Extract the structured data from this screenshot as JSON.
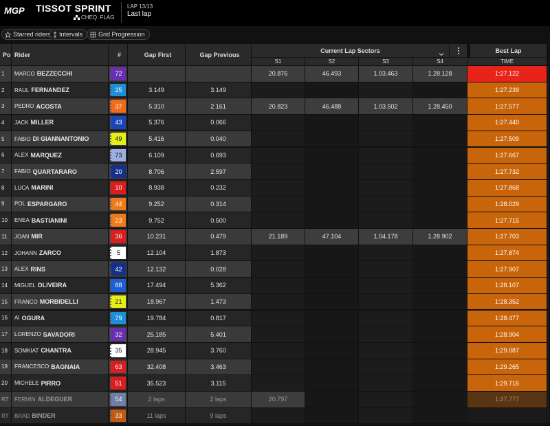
{
  "header": {
    "logo": "MGP",
    "title": "TISSOT SPRINT",
    "status": "CHEQ. FLAG",
    "lap": "LAP 13/13",
    "lap_note": "Last lap"
  },
  "toolbar": {
    "buttons": [
      "Starred riders",
      "Intervals",
      "Grid Progression"
    ]
  },
  "table": {
    "columns": {
      "pos": "Pos",
      "rider": "Rider",
      "number": "#",
      "gap_first": "Gap First",
      "gap_previous": "Gap Previous",
      "sectors_group": "Current Lap Sectors",
      "sectors": [
        "S1",
        "S2",
        "S3",
        "S4"
      ],
      "best_group": "Best Lap",
      "best": "TIME"
    },
    "rows": [
      {
        "pos": "1",
        "first": "MARCO",
        "last": "BEZZECCHI",
        "number": "72",
        "color": "#6a2fb0",
        "gap_first": null,
        "gap_previous": null,
        "sectors": [
          "20.876",
          "46.493",
          "1.03.463",
          "1.28.128"
        ],
        "best": "1:27.122"
      },
      {
        "pos": "2",
        "first": "RAUL",
        "last": "FERNANDEZ",
        "number": "25",
        "color": "#1e8fd6",
        "gap_first": "3.149",
        "gap_previous": "3.149",
        "sectors": [
          null,
          null,
          null,
          null
        ],
        "best": "1:27.239"
      },
      {
        "pos": "3",
        "first": "PEDRO",
        "last": "ACOSTA",
        "number": "37",
        "color": "#f26b1d",
        "gap_first": "5.310",
        "gap_previous": "2.161",
        "sectors": [
          "20.823",
          "46.488",
          "1.03.502",
          "1.28.450"
        ],
        "best": "1:27.577"
      },
      {
        "pos": "4",
        "first": "JACK",
        "last": "MILLER",
        "number": "43",
        "color": "#1c46b8",
        "gap_first": "5.376",
        "gap_previous": "0.066",
        "sectors": [
          null,
          null,
          null,
          null
        ],
        "best": "1:27.440"
      },
      {
        "pos": "5",
        "first": "FABIO",
        "last": "DI GIANNANTONIO",
        "number": "49",
        "color": "#e6ee1a",
        "gap_first": "5.416",
        "gap_previous": "0.040",
        "sectors": [
          null,
          null,
          null,
          null
        ],
        "best": "1:27.509"
      },
      {
        "pos": "6",
        "first": "ALEX",
        "last": "MARQUEZ",
        "number": "73",
        "color": "#9bb0e0",
        "gap_first": "6.109",
        "gap_previous": "0.693",
        "sectors": [
          null,
          null,
          null,
          null
        ],
        "best": "1:27.667"
      },
      {
        "pos": "7",
        "first": "FABIO",
        "last": "QUARTARARO",
        "number": "20",
        "color": "#14308a",
        "gap_first": "8.706",
        "gap_previous": "2.597",
        "sectors": [
          null,
          null,
          null,
          null
        ],
        "best": "1:27.732"
      },
      {
        "pos": "8",
        "first": "LUCA",
        "last": "MARINI",
        "number": "10",
        "color": "#d81e1e",
        "gap_first": "8.938",
        "gap_previous": "0.232",
        "sectors": [
          null,
          null,
          null,
          null
        ],
        "best": "1:27.868"
      },
      {
        "pos": "9",
        "first": "POL",
        "last": "ESPARGARO",
        "number": "44",
        "color": "#f07a1a",
        "gap_first": "9.252",
        "gap_previous": "0.314",
        "sectors": [
          null,
          null,
          null,
          null
        ],
        "best": "1:28.029"
      },
      {
        "pos": "10",
        "first": "ENEA",
        "last": "BASTIANINI",
        "number": "23",
        "color": "#f07a1a",
        "gap_first": "9.752",
        "gap_previous": "0.500",
        "sectors": [
          null,
          null,
          null,
          null
        ],
        "best": "1:27.715"
      },
      {
        "pos": "11",
        "first": "JOAN",
        "last": "MIR",
        "number": "36",
        "color": "#d81e1e",
        "gap_first": "10.231",
        "gap_previous": "0.479",
        "sectors": [
          "21.189",
          "47.104",
          "1.04.178",
          "1.28.902"
        ],
        "best": "1:27.703"
      },
      {
        "pos": "12",
        "first": "JOHANN",
        "last": "ZARCO",
        "number": "5",
        "color": "#ffffff",
        "gap_first": "12.104",
        "gap_previous": "1.873",
        "sectors": [
          null,
          null,
          null,
          null
        ],
        "best": "1:27.874"
      },
      {
        "pos": "13",
        "first": "ALEX",
        "last": "RINS",
        "number": "42",
        "color": "#14308a",
        "gap_first": "12.132",
        "gap_previous": "0.028",
        "sectors": [
          null,
          null,
          null,
          null
        ],
        "best": "1:27.907"
      },
      {
        "pos": "14",
        "first": "MIGUEL",
        "last": "OLIVEIRA",
        "number": "88",
        "color": "#1c5fd0",
        "gap_first": "17.494",
        "gap_previous": "5.362",
        "sectors": [
          null,
          null,
          null,
          null
        ],
        "best": "1:28.107"
      },
      {
        "pos": "15",
        "first": "FRANCO",
        "last": "MORBIDELLI",
        "number": "21",
        "color": "#e6ee1a",
        "gap_first": "18.967",
        "gap_previous": "1.473",
        "sectors": [
          null,
          null,
          null,
          null
        ],
        "best": "1:28.352"
      },
      {
        "pos": "16",
        "first": "AI",
        "last": "OGURA",
        "number": "79",
        "color": "#1e8fd6",
        "gap_first": "19.784",
        "gap_previous": "0.817",
        "sectors": [
          null,
          null,
          null,
          null
        ],
        "best": "1:28.477"
      },
      {
        "pos": "17",
        "first": "LORENZO",
        "last": "SAVADORI",
        "number": "32",
        "color": "#6a2fb0",
        "gap_first": "25.185",
        "gap_previous": "5.401",
        "sectors": [
          null,
          null,
          null,
          null
        ],
        "best": "1:28.904"
      },
      {
        "pos": "18",
        "first": "SOMKIAT",
        "last": "CHANTRA",
        "number": "35",
        "color": "#ffffff",
        "gap_first": "28.945",
        "gap_previous": "3.760",
        "sectors": [
          null,
          null,
          null,
          null
        ],
        "best": "1:29.087"
      },
      {
        "pos": "19",
        "first": "FRANCESCO",
        "last": "BAGNAIA",
        "number": "63",
        "color": "#d81e1e",
        "gap_first": "32.408",
        "gap_previous": "3.463",
        "sectors": [
          null,
          null,
          null,
          null
        ],
        "best": "1:29.265"
      },
      {
        "pos": "20",
        "first": "MICHELE",
        "last": "PIRRO",
        "number": "51",
        "color": "#d81e1e",
        "gap_first": "35.523",
        "gap_previous": "3.115",
        "sectors": [
          null,
          null,
          null,
          null
        ],
        "best": "1:29.716"
      },
      {
        "pos": "RT",
        "first": "FERMIN",
        "last": "ALDEGUER",
        "number": "54",
        "color": "#6f7fa6",
        "gap_first": "2 laps",
        "gap_previous": "2 laps",
        "sectors": [
          "20.797",
          null,
          null,
          null
        ],
        "best": "1:27.777"
      },
      {
        "pos": "RT",
        "first": "BRAD",
        "last": "BINDER",
        "number": "33",
        "color": "#c05a14",
        "gap_first": "11 laps",
        "gap_previous": "9 laps",
        "sectors": [
          null,
          null,
          null,
          null
        ],
        "best": null
      }
    ]
  }
}
